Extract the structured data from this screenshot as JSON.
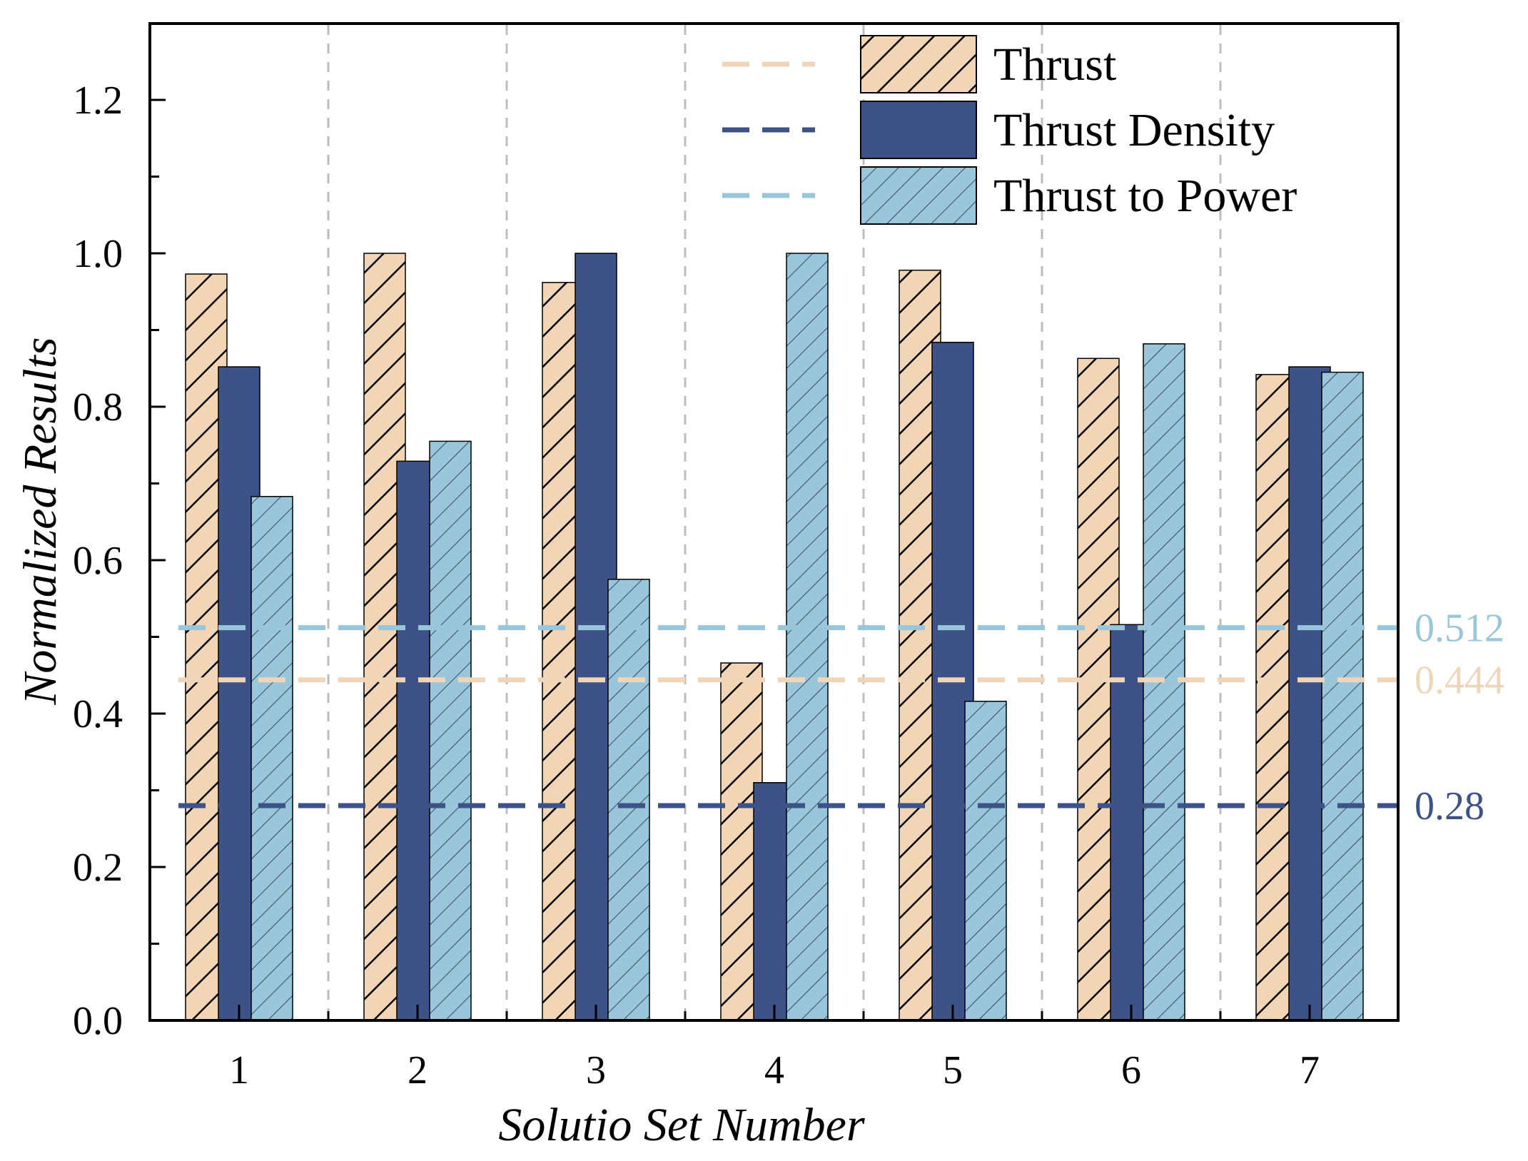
{
  "chart_data": {
    "type": "bar",
    "title": "",
    "xlabel": "Solutio Set Number",
    "ylabel": "Normalized Results",
    "ylim": [
      0,
      1.3
    ],
    "yticks": [
      "0.0",
      "0.2",
      "0.4",
      "0.6",
      "0.8",
      "1.0",
      "1.2"
    ],
    "categories": [
      "1",
      "2",
      "3",
      "4",
      "5",
      "6",
      "7"
    ],
    "legend_position": "top-right",
    "series": [
      {
        "name": "Thrust",
        "values": [
          0.973,
          1.0,
          0.962,
          0.466,
          0.978,
          0.863,
          0.842
        ],
        "color": "#F2D5B5",
        "pattern": "dense-hatch"
      },
      {
        "name": "Thrust Density",
        "values": [
          0.852,
          0.729,
          1.0,
          0.31,
          0.884,
          0.516,
          0.852
        ],
        "color": "#3D5287",
        "pattern": "solid"
      },
      {
        "name": "Thrust to Power",
        "values": [
          0.683,
          0.755,
          0.575,
          1.0,
          0.416,
          0.882,
          0.845
        ],
        "color": "#99C6DB",
        "pattern": "light-hatch"
      }
    ],
    "reference_lines": [
      {
        "series": "Thrust to Power",
        "value": 0.512,
        "label": "0.512",
        "color": "#99C6DB"
      },
      {
        "series": "Thrust",
        "value": 0.444,
        "label": "0.444",
        "color": "#EFD5BA"
      },
      {
        "series": "Thrust Density",
        "value": 0.28,
        "label": "0.28",
        "color": "#3D5287"
      }
    ],
    "grid": false,
    "category_separators": true
  }
}
